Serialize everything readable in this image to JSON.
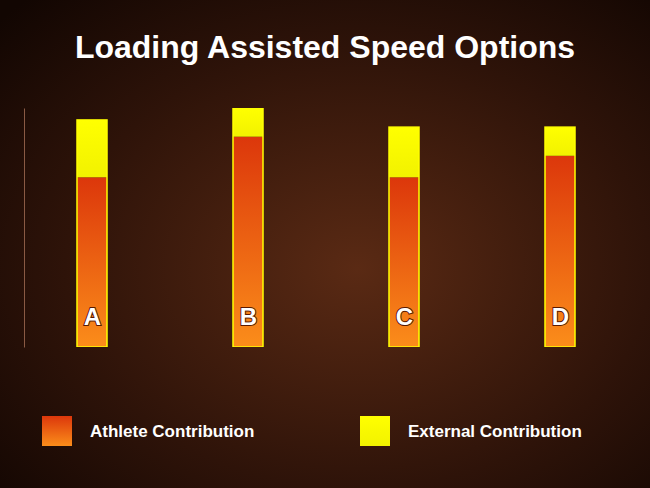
{
  "chart_data": {
    "type": "bar",
    "title": "Loading Assisted Speed Options",
    "categories": [
      "A",
      "B",
      "C",
      "D"
    ],
    "series": [
      {
        "name": "Athlete Contribution",
        "color": "#f03c0c",
        "values": [
          71,
          88,
          71,
          80
        ]
      },
      {
        "name": "External Contribution",
        "color": "#ffff00",
        "values": [
          24,
          12,
          21,
          12
        ]
      }
    ],
    "stacked": true,
    "ylim": [
      0,
      100
    ],
    "tick_labels": "x",
    "grid": false,
    "legend": "bottom"
  }
}
